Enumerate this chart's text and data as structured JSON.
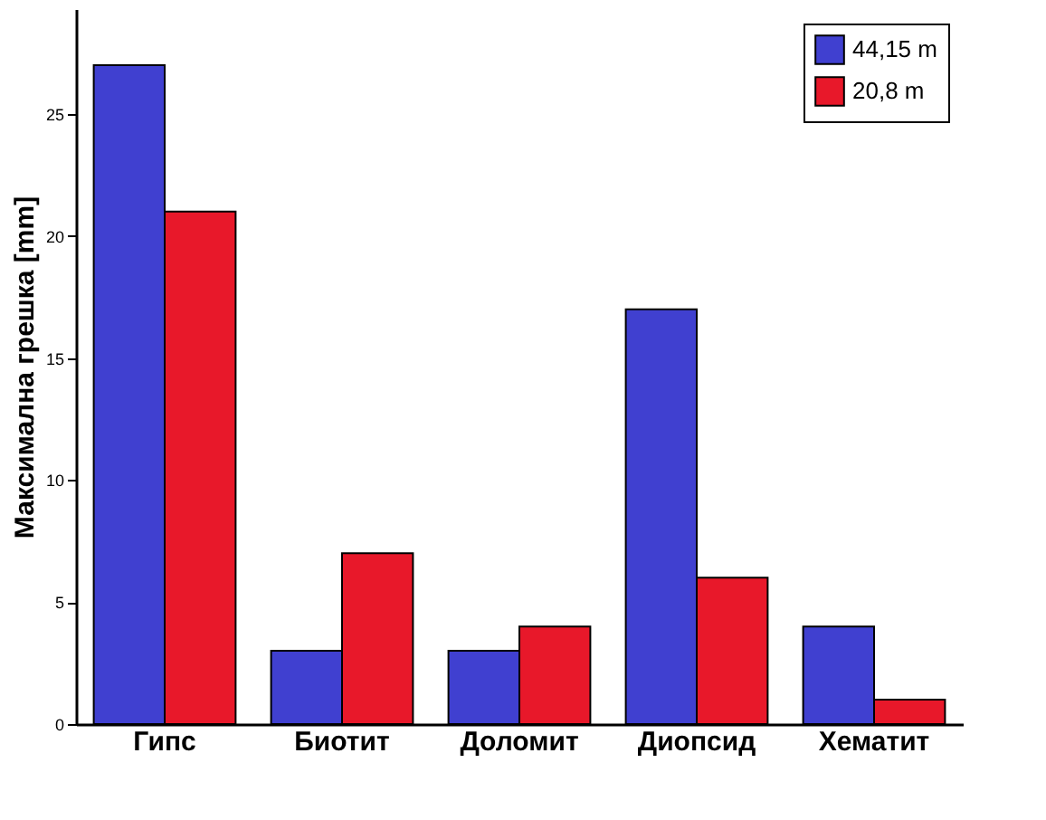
{
  "chart_data": {
    "type": "bar",
    "ylabel": "Максимална грешка [mm]",
    "categories": [
      "Гипс",
      "Биотит",
      "Доломит",
      "Диопсид",
      "Хематит"
    ],
    "series": [
      {
        "name": "44,15 m",
        "color": "#4040d0",
        "values": [
          27,
          3,
          3,
          17,
          4
        ]
      },
      {
        "name": "20,8 m",
        "color": "#e8182a",
        "values": [
          21,
          7,
          4,
          6,
          1
        ]
      }
    ],
    "ylim": [
      0,
      29.3
    ],
    "yticks": [
      0,
      5,
      10,
      15,
      20,
      25
    ],
    "grid": false,
    "legend": "top right"
  }
}
